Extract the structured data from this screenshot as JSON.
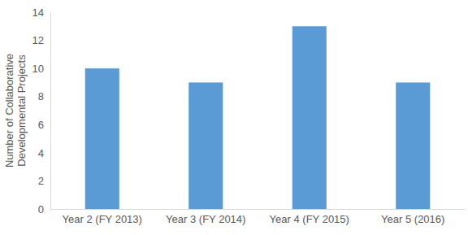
{
  "chart_data": {
    "type": "bar",
    "y_label": "Number of Collaborative Developmental Projects",
    "categories": [
      "Year 2 (FY 2013)",
      "Year 3 (FY 2014)",
      "Year 4 (FY 2015)",
      "Year 5 (2016)"
    ],
    "values": [
      10,
      9,
      13,
      9
    ],
    "color": "#5b9bd5",
    "ylim": [
      0,
      14
    ],
    "yticks": [
      0,
      2,
      4,
      6,
      8,
      10,
      12,
      14
    ],
    "grid": false
  }
}
